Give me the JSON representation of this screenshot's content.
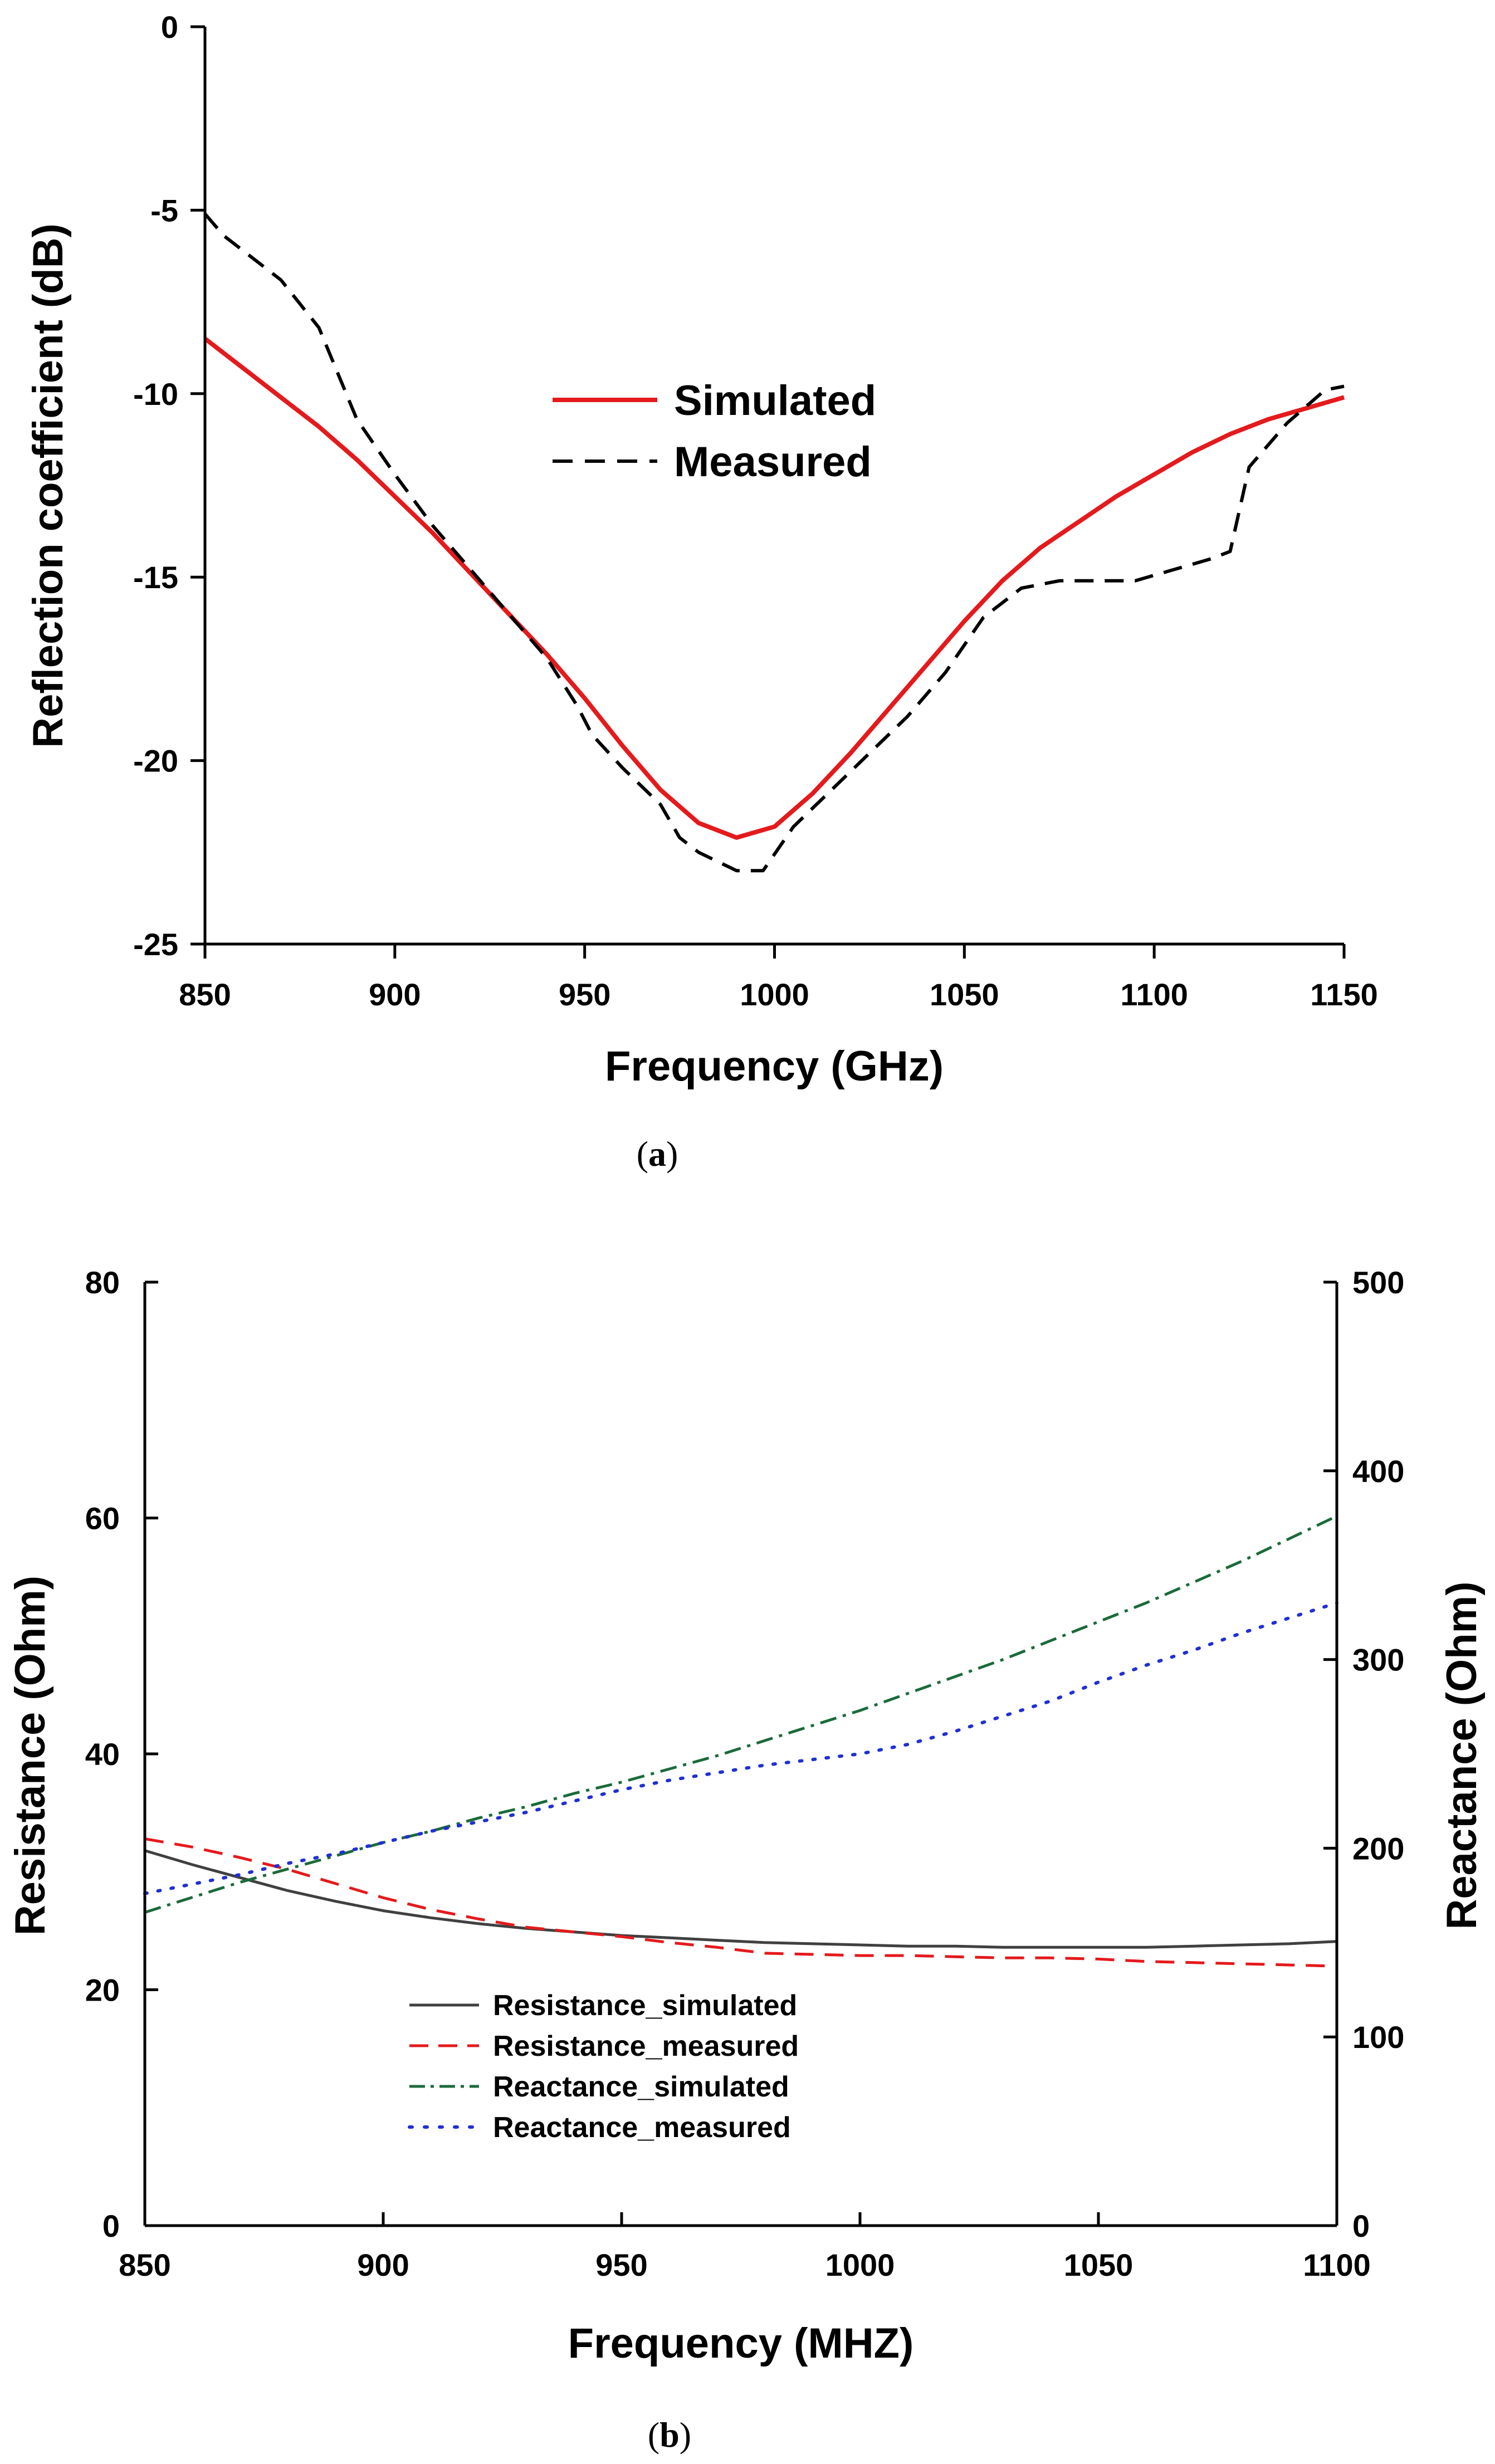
{
  "chart_data": [
    {
      "type": "line",
      "caption": {
        "open": "(",
        "letter": "a",
        "close": ")"
      },
      "xlabel": "Frequency (GHz)",
      "ylabel": "Reflection coefficient (dB)",
      "xlim": [
        850,
        1150
      ],
      "ylim": [
        -25,
        0
      ],
      "xticks": [
        "850",
        "900",
        "950",
        "1000",
        "1050",
        "1100",
        "1150"
      ],
      "yticks": [
        "0",
        "-5",
        "-10",
        "-15",
        "-20",
        "-25"
      ],
      "legend_position": "upper-center",
      "series": [
        {
          "name": "Simulated",
          "color": "#e41a1c",
          "style": "solid",
          "x": [
            850,
            860,
            870,
            880,
            890,
            900,
            910,
            920,
            930,
            940,
            950,
            960,
            970,
            980,
            990,
            1000,
            1010,
            1020,
            1030,
            1040,
            1050,
            1060,
            1070,
            1080,
            1090,
            1100,
            1110,
            1120,
            1130,
            1140,
            1150
          ],
          "y": [
            -8.5,
            -9.3,
            -10.1,
            -10.9,
            -11.8,
            -12.8,
            -13.8,
            -14.9,
            -16.0,
            -17.1,
            -18.3,
            -19.6,
            -20.8,
            -21.7,
            -22.1,
            -21.8,
            -20.9,
            -19.8,
            -18.6,
            -17.4,
            -16.2,
            -15.1,
            -14.2,
            -13.5,
            -12.8,
            -12.2,
            -11.6,
            -11.1,
            -10.7,
            -10.4,
            -10.1
          ]
        },
        {
          "name": "Measured",
          "color": "#000000",
          "style": "dashed",
          "x": [
            850,
            855,
            860,
            870,
            880,
            890,
            900,
            910,
            920,
            930,
            940,
            948,
            952,
            960,
            970,
            975,
            980,
            990,
            997,
            1005,
            1015,
            1025,
            1035,
            1045,
            1055,
            1065,
            1075,
            1085,
            1095,
            1105,
            1115,
            1120,
            1125,
            1135,
            1145,
            1150
          ],
          "y": [
            -5.1,
            -5.7,
            -6.1,
            -6.9,
            -8.2,
            -10.7,
            -12.2,
            -13.6,
            -14.8,
            -16.0,
            -17.2,
            -18.5,
            -19.3,
            -20.2,
            -21.2,
            -22.1,
            -22.5,
            -23.0,
            -23.0,
            -21.8,
            -20.8,
            -19.8,
            -18.8,
            -17.6,
            -16.1,
            -15.3,
            -15.1,
            -15.1,
            -15.1,
            -14.8,
            -14.5,
            -14.3,
            -12.0,
            -10.8,
            -9.9,
            -9.8
          ]
        }
      ]
    },
    {
      "type": "line",
      "caption": {
        "open": "(",
        "letter": "b",
        "close": ")"
      },
      "xlabel": "Frequency (MHZ)",
      "ylabel": "Resistance (Ohm)",
      "y2label": "Reactance (Ohm)",
      "xlim": [
        850,
        1100
      ],
      "ylim": [
        0,
        80
      ],
      "y2lim": [
        0,
        500
      ],
      "xticks": [
        "850",
        "900",
        "950",
        "1000",
        "1050",
        "1100"
      ],
      "yticks": [
        "0",
        "20",
        "40",
        "60",
        "80"
      ],
      "y2ticks": [
        "0",
        "100",
        "200",
        "300",
        "400",
        "500"
      ],
      "legend_position": "lower-left",
      "series": [
        {
          "name": "Resistance_simulated",
          "axis": "left",
          "color": "#404040",
          "style": "solid",
          "x": [
            850,
            860,
            870,
            880,
            890,
            900,
            910,
            920,
            930,
            940,
            950,
            960,
            970,
            980,
            990,
            1000,
            1010,
            1020,
            1030,
            1040,
            1050,
            1060,
            1070,
            1080,
            1090,
            1100
          ],
          "y": [
            31.8,
            30.6,
            29.5,
            28.4,
            27.5,
            26.7,
            26.1,
            25.6,
            25.2,
            24.9,
            24.6,
            24.4,
            24.2,
            24.0,
            23.9,
            23.8,
            23.7,
            23.7,
            23.6,
            23.6,
            23.6,
            23.6,
            23.7,
            23.8,
            23.9,
            24.1
          ]
        },
        {
          "name": "Resistance_measured",
          "axis": "left",
          "color": "#e41a1c",
          "style": "dashed",
          "x": [
            850,
            860,
            870,
            880,
            890,
            900,
            910,
            920,
            930,
            940,
            950,
            960,
            970,
            980,
            990,
            1000,
            1010,
            1020,
            1030,
            1040,
            1050,
            1060,
            1070,
            1080,
            1090,
            1100
          ],
          "y": [
            32.8,
            32.1,
            31.2,
            30.2,
            29.0,
            27.8,
            26.8,
            26.0,
            25.3,
            24.9,
            24.5,
            24.0,
            23.6,
            23.1,
            23.0,
            22.9,
            22.9,
            22.8,
            22.7,
            22.7,
            22.6,
            22.4,
            22.3,
            22.2,
            22.1,
            22.0
          ]
        },
        {
          "name": "Reactance_simulated",
          "axis": "right",
          "color": "#1b6b3a",
          "style": "dashdot",
          "x": [
            850,
            860,
            870,
            880,
            890,
            900,
            910,
            920,
            930,
            940,
            950,
            960,
            970,
            980,
            990,
            1000,
            1010,
            1020,
            1030,
            1040,
            1050,
            1060,
            1070,
            1080,
            1090,
            1100
          ],
          "y": [
            166,
            174,
            182,
            189,
            196,
            203,
            209,
            216,
            222,
            229,
            235,
            242,
            249,
            257,
            265,
            273,
            282,
            291,
            300,
            310,
            320,
            330,
            341,
            352,
            364,
            376
          ]
        },
        {
          "name": "Reactance_measured",
          "axis": "right",
          "color": "#1f2fd6",
          "style": "dotted",
          "x": [
            850,
            860,
            870,
            880,
            890,
            900,
            910,
            920,
            930,
            940,
            950,
            960,
            970,
            980,
            990,
            1000,
            1010,
            1020,
            1030,
            1040,
            1050,
            1060,
            1070,
            1080,
            1090,
            1100
          ],
          "y": [
            176,
            181,
            186,
            192,
            197,
            203,
            209,
            214,
            219,
            225,
            231,
            236,
            240,
            244,
            247,
            250,
            255,
            262,
            270,
            278,
            288,
            297,
            305,
            314,
            322,
            330
          ]
        }
      ]
    }
  ]
}
